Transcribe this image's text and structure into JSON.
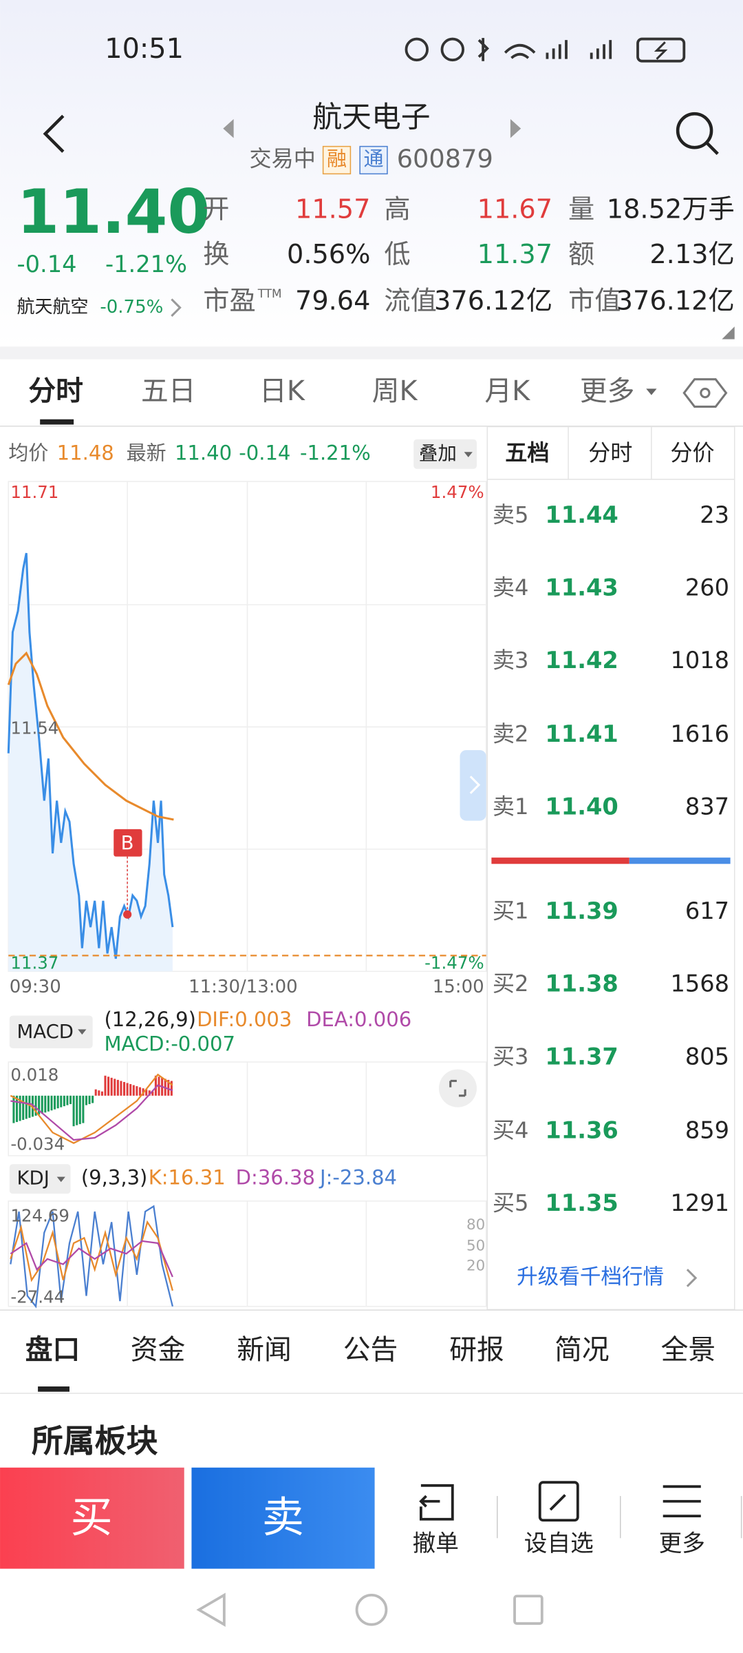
{
  "status": {
    "time": "10:51"
  },
  "header": {
    "title": "航天电子",
    "status": "交易中",
    "badges": [
      "融",
      "通"
    ],
    "code": "600879"
  },
  "quote": {
    "price": "11.40",
    "change": "-0.14",
    "change_pct": "-1.21%",
    "sector": "航天航空",
    "sector_change": "-0.75%"
  },
  "stats": [
    [
      {
        "label": "开",
        "value": "11.57"
      },
      {
        "label": "高",
        "value": "11.67"
      },
      {
        "label": "量",
        "value": "18.52万手"
      }
    ],
    [
      {
        "label": "换",
        "value": "0.56%"
      },
      {
        "label": "低",
        "value": "11.37"
      },
      {
        "label": "额",
        "value": "2.13亿"
      }
    ],
    [
      {
        "label": "市盈",
        "sup": "TTM",
        "value": "79.64"
      },
      {
        "label": "流值",
        "value": "376.12亿"
      },
      {
        "label": "市值",
        "value": "376.12亿"
      }
    ]
  ],
  "tabs": [
    "分时",
    "五日",
    "日K",
    "周K",
    "月K",
    "更多"
  ],
  "chart_header": {
    "avg_label": "均价",
    "avg": "11.48",
    "latest_label": "最新",
    "latest": "11.40",
    "change": "-0.14",
    "change_pct": "-1.21%",
    "overlay": "叠加"
  },
  "axis": {
    "top": "11.71",
    "top_pct": "1.47%",
    "mid": "11.54",
    "bottom": "11.37",
    "bottom_pct": "-1.47%",
    "times": [
      "09:30",
      "11:30/13:00",
      "15:00"
    ]
  },
  "marker": "B",
  "macd": {
    "label": "MACD",
    "params": "(12,26,9)",
    "dif": "DIF:0.003",
    "dea": "DEA:0.006",
    "macd": "MACD:-0.007",
    "top": "0.018",
    "bottom": "-0.034"
  },
  "kdj": {
    "label": "KDJ",
    "params": "(9,3,3)",
    "k": "K:16.31",
    "d": "D:36.38",
    "j": "J:-23.84",
    "top": "124.69",
    "bottom": "-27.44",
    "levels": [
      "80",
      "50",
      "20"
    ]
  },
  "orderbook": {
    "tabs": [
      "五档",
      "分时",
      "分价"
    ],
    "asks": [
      {
        "label": "卖5",
        "price": "11.44",
        "volume": "23"
      },
      {
        "label": "卖4",
        "price": "11.43",
        "volume": "260"
      },
      {
        "label": "卖3",
        "price": "11.42",
        "volume": "1018"
      },
      {
        "label": "卖2",
        "price": "11.41",
        "volume": "1616"
      },
      {
        "label": "卖1",
        "price": "11.40",
        "volume": "837"
      }
    ],
    "bids": [
      {
        "label": "买1",
        "price": "11.39",
        "volume": "617"
      },
      {
        "label": "买2",
        "price": "11.38",
        "volume": "1568"
      },
      {
        "label": "买3",
        "price": "11.37",
        "volume": "805"
      },
      {
        "label": "买4",
        "price": "11.36",
        "volume": "859"
      },
      {
        "label": "买5",
        "price": "11.35",
        "volume": "1291"
      }
    ],
    "upgrade": "升级看千档行情"
  },
  "bottom_tabs": [
    "盘口",
    "资金",
    "新闻",
    "公告",
    "研报",
    "简况",
    "全景"
  ],
  "section": "所属板块",
  "actions": {
    "buy": "买",
    "sell": "卖",
    "items": [
      "撤单",
      "设自选",
      "更多"
    ]
  }
}
